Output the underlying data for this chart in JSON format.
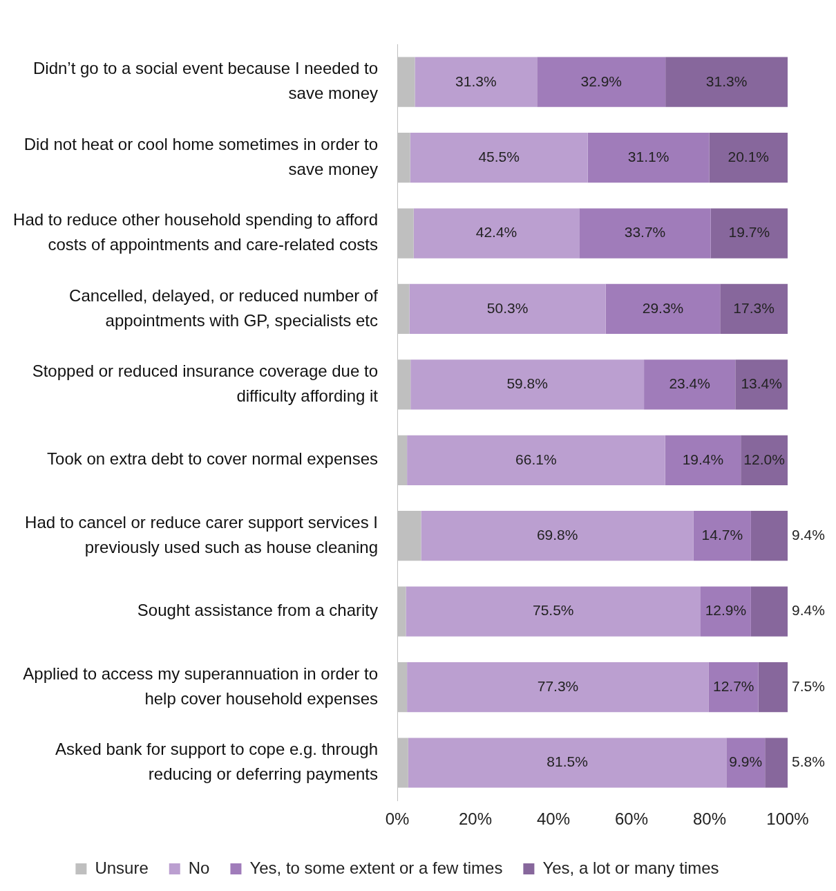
{
  "chart_data": {
    "type": "bar",
    "orientation": "horizontal",
    "stacked": true,
    "categories": [
      "Didn’t go to a social event because I needed to save money",
      "Did not heat or cool home sometimes in order to save money",
      "Had to reduce other household spending to afford costs of appointments and care-related costs",
      "Cancelled, delayed, or reduced number of appointments with GP, specialists etc",
      "Stopped or reduced insurance coverage due to difficulty affording it",
      "Took on extra debt to cover normal expenses",
      "Had to cancel or reduce carer support services I previously used such as house cleaning",
      "Sought assistance from a charity",
      "Applied to access my superannuation in order to help cover household expenses",
      "Asked bank for support to cope e.g. through reducing or deferring payments"
    ],
    "series": [
      {
        "name": "Unsure",
        "color": "#bfbfbf",
        "values": [
          4.5,
          3.3,
          4.2,
          3.1,
          3.4,
          2.5,
          6.1,
          2.2,
          2.5,
          2.8
        ],
        "value_labels": [
          null,
          null,
          null,
          null,
          null,
          null,
          null,
          null,
          null,
          null
        ]
      },
      {
        "name": "No",
        "color": "#bb9fd0",
        "values": [
          31.3,
          45.5,
          42.4,
          50.3,
          59.8,
          66.1,
          69.8,
          75.5,
          77.3,
          81.5
        ],
        "value_labels": [
          "31.3%",
          "45.5%",
          "42.4%",
          "50.3%",
          "59.8%",
          "66.1%",
          "69.8%",
          "75.5%",
          "77.3%",
          "81.5%"
        ]
      },
      {
        "name": "Yes, to some extent or a few times",
        "color": "#a07cba",
        "values": [
          32.9,
          31.1,
          33.7,
          29.3,
          23.4,
          19.4,
          14.7,
          12.9,
          12.7,
          9.9
        ],
        "value_labels": [
          "32.9%",
          "31.1%",
          "33.7%",
          "29.3%",
          "23.4%",
          "19.4%",
          "14.7%",
          "12.9%",
          "12.7%",
          "9.9%"
        ]
      },
      {
        "name": "Yes, a lot or many times",
        "color": "#87679c",
        "values": [
          31.3,
          20.1,
          19.7,
          17.3,
          13.4,
          12.0,
          9.4,
          9.4,
          7.5,
          5.8
        ],
        "value_labels": [
          "31.3%",
          "20.1%",
          "19.7%",
          "17.3%",
          "13.4%",
          "12.0%",
          "9.4%",
          "9.4%",
          "7.5%",
          "5.8%"
        ]
      }
    ],
    "xlim": [
      0,
      100
    ],
    "xticks": [
      {
        "value": 0,
        "label": "0%"
      },
      {
        "value": 20,
        "label": "20%"
      },
      {
        "value": 40,
        "label": "40%"
      },
      {
        "value": 60,
        "label": "60%"
      },
      {
        "value": 80,
        "label": "80%"
      },
      {
        "value": 100,
        "label": "100%"
      }
    ],
    "grid": false,
    "legend": "bottom"
  }
}
